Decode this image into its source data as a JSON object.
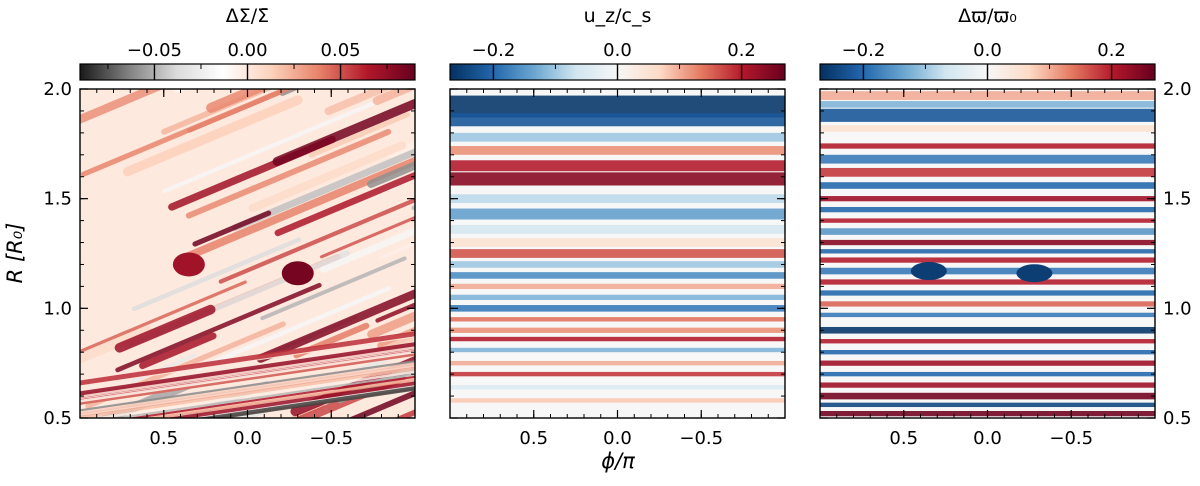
{
  "figure": {
    "xlabel": "ϕ/π",
    "ylabel": "R [R₀]"
  },
  "chart_data": [
    {
      "type": "heatmap",
      "colorbar_label": "ΔΣ/Σ̄",
      "colorbar_ticks": [
        "−0.05",
        "0.00",
        "0.05"
      ],
      "colorbar_tick_values": [
        -0.05,
        0.0,
        0.05
      ],
      "colorbar_range": [
        -0.09,
        0.09
      ],
      "colormap": [
        "#1a1a1a",
        "#7f7f7f",
        "#dadada",
        "#ffffff",
        "#fcd2bc",
        "#e8826a",
        "#b2182b",
        "#67001f"
      ],
      "x_ticks": [
        "0.5",
        "0.0",
        "−0.5"
      ],
      "x_tick_values": [
        0.5,
        0.0,
        -0.5
      ],
      "xlim": [
        1,
        -1
      ],
      "y_ticks": [
        "0.5",
        "1.0",
        "1.5",
        "2.0"
      ],
      "y_tick_values": [
        0.5,
        1.0,
        1.5,
        2.0
      ],
      "ylim": [
        0.5,
        2.0
      ],
      "y_axis_side": "left",
      "features": "diagonal stripes tilted in phi with two vortex blobs near R = 1.2 at phi ≈ 0.35 and phi ≈ -0.3"
    },
    {
      "type": "heatmap",
      "colorbar_label": "u_z/c_s",
      "colorbar_ticks": [
        "−0.2",
        "0.0",
        "0.2"
      ],
      "colorbar_tick_values": [
        -0.2,
        0.0,
        0.2
      ],
      "colorbar_range": [
        -0.27,
        0.27
      ],
      "colormap": [
        "#053061",
        "#2166ac",
        "#6aa6d0",
        "#d1e5f0",
        "#f7f7f7",
        "#fddbc7",
        "#e57a62",
        "#b2182b",
        "#67001f"
      ],
      "x_ticks": [
        "0.5",
        "0.0",
        "−0.5"
      ],
      "x_tick_values": [
        0.5,
        0.0,
        -0.5
      ],
      "xlim": [
        1,
        -1
      ],
      "ylim": [
        0.5,
        2.0
      ],
      "features": "horizontal bands, strong negative band near R = 1.9, positive band near R = 1.6"
    },
    {
      "type": "heatmap",
      "colorbar_label": "Δϖ/ϖ₀",
      "colorbar_ticks": [
        "−0.2",
        "0.0",
        "0.2"
      ],
      "colorbar_tick_values": [
        -0.2,
        0.0,
        0.2
      ],
      "colorbar_range": [
        -0.27,
        0.27
      ],
      "colormap": [
        "#053061",
        "#2166ac",
        "#6aa6d0",
        "#d1e5f0",
        "#f7f7f7",
        "#fddbc7",
        "#e57a62",
        "#b2182b",
        "#67001f"
      ],
      "x_ticks": [
        "0.5",
        "0.0",
        "−0.5"
      ],
      "x_tick_values": [
        0.5,
        0.0,
        -0.5
      ],
      "xlim": [
        1,
        -1
      ],
      "y_ticks": [
        "0.5",
        "1.0",
        "1.5",
        "2.0"
      ],
      "y_tick_values": [
        0.5,
        1.0,
        1.5,
        2.0
      ],
      "ylim": [
        0.5,
        2.0
      ],
      "y_axis_side": "right",
      "features": "sharp horizontal bands with two blue vortex spots near R = 1.17"
    }
  ]
}
